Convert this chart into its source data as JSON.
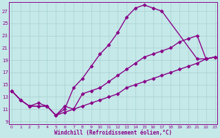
{
  "bg_color": "#c5e8e8",
  "grid_color": "#a8d0d0",
  "line_color": "#880088",
  "marker": "D",
  "markersize": 2.5,
  "linewidth": 1.0,
  "xlabel": "Windchill (Refroidissement éolien,°C)",
  "xlim": [
    -0.3,
    23.3
  ],
  "ylim": [
    8.5,
    28.5
  ],
  "yticks": [
    9,
    11,
    13,
    15,
    17,
    19,
    21,
    23,
    25,
    27
  ],
  "xticks": [
    0,
    1,
    2,
    3,
    4,
    5,
    6,
    7,
    8,
    9,
    10,
    11,
    12,
    13,
    14,
    15,
    16,
    17,
    18,
    19,
    20,
    21,
    22,
    23
  ],
  "line1_x": [
    0,
    1,
    2,
    3,
    4,
    5,
    6,
    7,
    8,
    9,
    10,
    11,
    12,
    13,
    14,
    15,
    16,
    17,
    21,
    22,
    23
  ],
  "line1_y": [
    14,
    12.5,
    11.5,
    12,
    11.5,
    10,
    11,
    14.5,
    16,
    18,
    20,
    21.5,
    23.5,
    26,
    27.5,
    28,
    27.5,
    27,
    19.2,
    19.2,
    19.5
  ],
  "line2_x": [
    0,
    1,
    2,
    3,
    4,
    5,
    6,
    7,
    8,
    9,
    10,
    11,
    12,
    13,
    14,
    15,
    16,
    17,
    18,
    19,
    20,
    21,
    22,
    23
  ],
  "line2_y": [
    14,
    12.5,
    11.5,
    11.5,
    11.5,
    10,
    11.5,
    11,
    13.5,
    14,
    14.5,
    15.5,
    16.5,
    17.5,
    18.5,
    19.5,
    20,
    20.5,
    21,
    22,
    22.5,
    23,
    19.2,
    19.5
  ],
  "line3_x": [
    0,
    1,
    2,
    3,
    4,
    5,
    6,
    7,
    8,
    9,
    10,
    11,
    12,
    13,
    14,
    15,
    16,
    17,
    18,
    19,
    20,
    21,
    22,
    23
  ],
  "line3_y": [
    14,
    12.5,
    11.5,
    11.5,
    11.5,
    10,
    10.5,
    11,
    11.5,
    12,
    12.5,
    13,
    13.5,
    14.5,
    15,
    15.5,
    16,
    16.5,
    17,
    17.5,
    18,
    18.5,
    19.2,
    19.5
  ]
}
